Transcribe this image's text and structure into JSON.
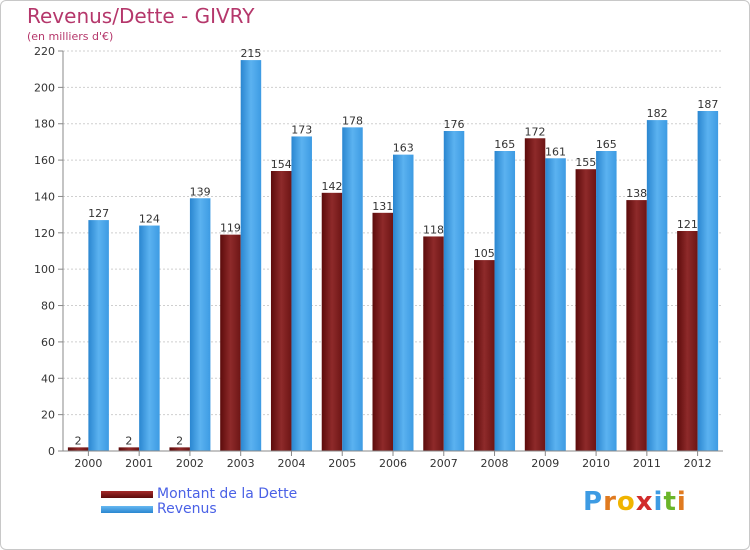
{
  "header": {
    "title": "Revenus/Dette - GIVRY",
    "subtitle": "(en milliers d'€)"
  },
  "legend": {
    "items": [
      {
        "label": "Montant de la Dette",
        "color": "#7a1818"
      },
      {
        "label": "Revenus",
        "color": "#3d9be3"
      }
    ]
  },
  "logo": {
    "text": "Proxiti"
  },
  "chart_data": {
    "type": "bar",
    "title": "Revenus/Dette - GIVRY",
    "subtitle": "(en milliers d'€)",
    "xlabel": "",
    "ylabel": "",
    "ylim": [
      0,
      220
    ],
    "yticks": [
      0,
      20,
      40,
      60,
      80,
      100,
      120,
      140,
      160,
      180,
      200,
      220
    ],
    "grid": true,
    "legend_placement": "bottom-left",
    "categories": [
      "2000",
      "2001",
      "2002",
      "2003",
      "2004",
      "2005",
      "2006",
      "2007",
      "2008",
      "2009",
      "2010",
      "2011",
      "2012"
    ],
    "series": [
      {
        "name": "Montant de la Dette",
        "color": "#7a1818",
        "values": [
          2,
          2,
          2,
          119,
          154,
          142,
          131,
          118,
          105,
          172,
          155,
          138,
          121
        ]
      },
      {
        "name": "Revenus",
        "color": "#3d9be3",
        "values": [
          127,
          124,
          139,
          215,
          173,
          178,
          163,
          176,
          165,
          161,
          165,
          182,
          187
        ]
      }
    ]
  }
}
